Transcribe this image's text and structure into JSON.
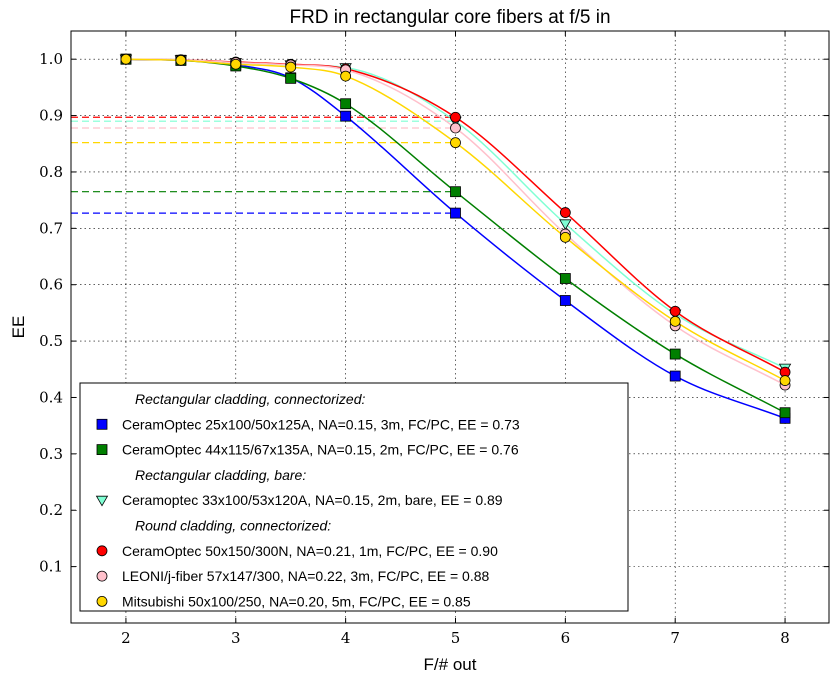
{
  "chart_data": {
    "type": "line",
    "title": "FRD in rectangular core fibers at f/5 in",
    "xlabel": "F/# out",
    "ylabel": "EE",
    "xlim": [
      1.5,
      8.4
    ],
    "ylim": [
      0.0,
      1.05
    ],
    "xticks": [
      2,
      3,
      4,
      5,
      6,
      7,
      8
    ],
    "yticks": [
      0.1,
      0.2,
      0.3,
      0.4,
      0.5,
      0.6,
      0.7,
      0.8,
      0.9,
      1.0
    ],
    "xtick_labels": [
      "2",
      "3",
      "4",
      "5",
      "6",
      "7",
      "8"
    ],
    "ytick_labels": [
      "0.1",
      "0.2",
      "0.3",
      "0.4",
      "0.5",
      "0.6",
      "0.7",
      "0.8",
      "0.9",
      "1.0"
    ],
    "grid": true,
    "legend_position": "bottom-left",
    "reference_x": 5,
    "colors": {
      "blue": "#0000ff",
      "green": "#007f00",
      "cyan": "#7fffd4",
      "red": "#ff0000",
      "pink": "#ffc0cb",
      "gold": "#ffd700"
    },
    "legend_groups": [
      "Rectangular cladding, connectorized:",
      "Rectangular cladding, bare:",
      "Round cladding, connectorized:"
    ],
    "series": [
      {
        "name": "CeramOptec 25x100/50x125A, NA=0.15, 3m, FC/PC, EE = 0.73",
        "group": 0,
        "marker": "square",
        "color": "#0000ff",
        "ee_at_ref": 0.727,
        "x": [
          2,
          2.5,
          3,
          3.5,
          4,
          5,
          6,
          7,
          8
        ],
        "y": [
          1.0,
          0.998,
          0.99,
          0.967,
          0.899,
          0.727,
          0.572,
          0.438,
          0.363
        ]
      },
      {
        "name": "CeramOptec 44x115/67x135A, NA=0.15, 2m, FC/PC, EE = 0.76",
        "group": 0,
        "marker": "square",
        "color": "#007f00",
        "ee_at_ref": 0.765,
        "x": [
          2,
          2.5,
          3,
          3.5,
          4,
          5,
          6,
          7,
          8
        ],
        "y": [
          1.0,
          0.998,
          0.988,
          0.966,
          0.921,
          0.765,
          0.611,
          0.477,
          0.373
        ]
      },
      {
        "name": "Ceramoptec 33x100/53x120A, NA=0.15, 2m, bare, EE = 0.89",
        "group": 1,
        "marker": "triangle-down",
        "color": "#7fffd4",
        "ee_at_ref": 0.89,
        "x": [
          2,
          2.5,
          3,
          3.5,
          4,
          5,
          6,
          7,
          8
        ],
        "y": [
          1.0,
          0.999,
          0.994,
          0.99,
          0.985,
          0.89,
          0.708,
          0.548,
          0.452
        ]
      },
      {
        "name": "CeramOptec 50x150/300N, NA=0.21, 1m, FC/PC, EE = 0.90",
        "group": 2,
        "marker": "circle",
        "color": "#ff0000",
        "ee_at_ref": 0.897,
        "x": [
          2,
          2.5,
          3,
          3.5,
          4,
          5,
          6,
          7,
          8
        ],
        "y": [
          1.0,
          0.999,
          0.995,
          0.991,
          0.983,
          0.897,
          0.728,
          0.553,
          0.445
        ]
      },
      {
        "name": "LEONI/j-fiber 57x147/300, NA=0.22, 3m, FC/PC, EE = 0.88",
        "group": 2,
        "marker": "circle",
        "color": "#ffc0cb",
        "ee_at_ref": 0.878,
        "x": [
          2,
          2.5,
          3,
          3.5,
          4,
          5,
          6,
          7,
          8
        ],
        "y": [
          1.0,
          0.999,
          0.994,
          0.99,
          0.981,
          0.878,
          0.69,
          0.527,
          0.422
        ]
      },
      {
        "name": "Mitsubishi 50x100/250, NA=0.20, 5m, FC/PC, EE = 0.85",
        "group": 2,
        "marker": "circle",
        "color": "#ffd700",
        "ee_at_ref": 0.852,
        "x": [
          2,
          2.5,
          3,
          3.5,
          4,
          5,
          6,
          7,
          8
        ],
        "y": [
          1.0,
          0.998,
          0.991,
          0.986,
          0.97,
          0.852,
          0.684,
          0.535,
          0.43
        ]
      }
    ]
  }
}
